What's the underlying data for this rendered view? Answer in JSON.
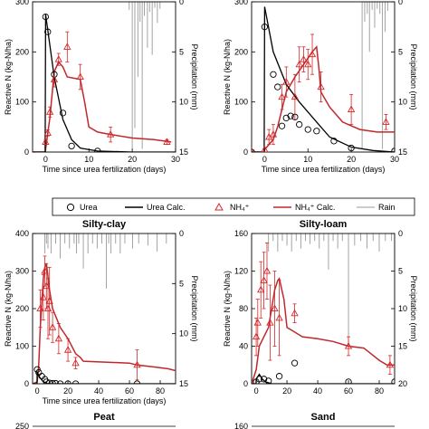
{
  "legend": {
    "urea": "Urea",
    "urea_calc": "Urea Calc.",
    "nh4": "NH₄⁺",
    "nh4_calc": "NH₄⁺ Calc.",
    "rain": "Rain"
  },
  "colors": {
    "urea": "#000000",
    "nh4": "#d62728",
    "nh4_calc": "#c0282d",
    "rain": "#999999"
  },
  "chart_data": [
    {
      "id": "p1",
      "type": "line",
      "title": "",
      "xlabel": "Time since urea fertilization (days)",
      "ylabel": "Reactive N (kg-N/ha)",
      "y2label": "Precipitation (mm)",
      "xlim": [
        -3,
        30
      ],
      "xticks": [
        0,
        10,
        20,
        30
      ],
      "ylim": [
        0,
        300
      ],
      "yticks": [
        0,
        100,
        200,
        300
      ],
      "y2lim": [
        15,
        0
      ],
      "y2ticks": [
        0,
        5,
        10,
        15
      ],
      "urea_obs": [
        [
          0,
          270
        ],
        [
          0.5,
          240
        ],
        [
          2,
          155
        ],
        [
          4,
          78
        ],
        [
          6,
          12
        ],
        [
          12,
          2
        ]
      ],
      "urea_calc": [
        [
          -3,
          0
        ],
        [
          -0.1,
          0
        ],
        [
          0,
          275
        ],
        [
          2,
          150
        ],
        [
          4,
          65
        ],
        [
          6,
          25
        ],
        [
          8,
          8
        ],
        [
          12,
          2
        ],
        [
          20,
          0
        ],
        [
          30,
          0
        ]
      ],
      "nh4_obs": [
        [
          0,
          20,
          5
        ],
        [
          0.5,
          38,
          6
        ],
        [
          1,
          80,
          10
        ],
        [
          2,
          145,
          15
        ],
        [
          3,
          185,
          12
        ],
        [
          5,
          210,
          30
        ],
        [
          8,
          150,
          25
        ],
        [
          15,
          35,
          15
        ],
        [
          28,
          20,
          5
        ]
      ],
      "nh4_calc": [
        [
          -3,
          0
        ],
        [
          -0.1,
          0
        ],
        [
          0,
          5
        ],
        [
          1,
          70
        ],
        [
          2,
          160
        ],
        [
          3,
          180
        ],
        [
          4,
          170
        ],
        [
          5,
          150
        ],
        [
          8,
          145
        ],
        [
          9,
          100
        ],
        [
          10,
          50
        ],
        [
          12,
          40
        ],
        [
          15,
          35
        ],
        [
          20,
          28
        ],
        [
          25,
          25
        ],
        [
          29,
          20
        ]
      ],
      "rain": [
        [
          19.3,
          0.8
        ],
        [
          20,
          14.7
        ],
        [
          20.6,
          12.6
        ],
        [
          21.3,
          7.5
        ],
        [
          21.8,
          2
        ],
        [
          22.3,
          14.7
        ],
        [
          22.8,
          1.4
        ],
        [
          23.5,
          4.6
        ],
        [
          24,
          1
        ],
        [
          24.6,
          5.3
        ],
        [
          25.2,
          0.6
        ],
        [
          25.8,
          2.1
        ],
        [
          26.4,
          0.7
        ]
      ]
    },
    {
      "id": "p2",
      "type": "line",
      "title": "",
      "xlabel": "Time since urea fertilization (days)",
      "ylabel": "Reactive N (kg-N/ha)",
      "y2label": "Precipitation (mm)",
      "xlim": [
        -3,
        30
      ],
      "xticks": [
        0,
        10,
        20,
        30
      ],
      "ylim": [
        0,
        300
      ],
      "yticks": [
        0,
        100,
        200,
        300
      ],
      "y2lim": [
        15,
        0
      ],
      "y2ticks": [
        0,
        5,
        10,
        15
      ],
      "urea_obs": [
        [
          -3,
          0
        ],
        [
          0,
          250
        ],
        [
          2,
          155
        ],
        [
          3,
          130
        ],
        [
          4,
          52
        ],
        [
          5,
          68
        ],
        [
          6,
          72
        ],
        [
          7,
          70
        ],
        [
          8,
          55
        ],
        [
          10,
          45
        ],
        [
          12,
          42
        ],
        [
          16,
          22
        ],
        [
          20,
          8
        ],
        [
          30,
          2
        ]
      ],
      "urea_calc": [
        [
          -3,
          0
        ],
        [
          -0.1,
          0
        ],
        [
          0,
          290
        ],
        [
          2,
          200
        ],
        [
          5,
          135
        ],
        [
          8,
          100
        ],
        [
          10,
          80
        ],
        [
          12,
          60
        ],
        [
          15,
          30
        ],
        [
          20,
          10
        ],
        [
          25,
          3
        ],
        [
          30,
          0
        ]
      ],
      "nh4_obs": [
        [
          -3,
          2,
          0
        ],
        [
          0,
          5,
          0
        ],
        [
          1,
          30,
          15
        ],
        [
          2,
          35,
          20
        ],
        [
          4,
          110,
          25
        ],
        [
          5,
          140,
          30
        ],
        [
          7,
          110,
          45
        ],
        [
          8,
          175,
          35
        ],
        [
          9,
          185,
          25
        ],
        [
          10,
          175,
          30
        ],
        [
          11,
          195,
          40
        ],
        [
          13,
          130,
          30
        ],
        [
          20,
          85,
          30
        ],
        [
          28,
          60,
          15
        ]
      ],
      "nh4_calc": [
        [
          -3,
          0
        ],
        [
          -0.1,
          0
        ],
        [
          0,
          5
        ],
        [
          2,
          25
        ],
        [
          3,
          50
        ],
        [
          5,
          120
        ],
        [
          7,
          150
        ],
        [
          9,
          175
        ],
        [
          11,
          200
        ],
        [
          12,
          210
        ],
        [
          12.5,
          170
        ],
        [
          13,
          120
        ],
        [
          15,
          90
        ],
        [
          18,
          60
        ],
        [
          22,
          45
        ],
        [
          26,
          40
        ],
        [
          30,
          40
        ]
      ],
      "rain": [
        [
          22.5,
          14.7
        ],
        [
          23.1,
          2
        ],
        [
          23.7,
          1.2
        ],
        [
          24.2,
          5
        ],
        [
          24.8,
          0.8
        ],
        [
          25.4,
          2.6
        ],
        [
          26,
          0.7
        ],
        [
          26.6,
          1.2
        ],
        [
          27.2,
          14.7
        ],
        [
          27.8,
          3
        ],
        [
          28.4,
          0.9
        ]
      ]
    },
    {
      "id": "p3",
      "type": "line",
      "title": "Silty-clay",
      "xlabel": "Time since urea fertilization (days)",
      "ylabel": "Reactive N (kg-N/ha)",
      "y2label": "Precipitation (mm)",
      "xlim": [
        -3,
        90
      ],
      "xticks": [
        0,
        20,
        40,
        60,
        80
      ],
      "ylim": [
        0,
        400
      ],
      "yticks": [
        0,
        100,
        200,
        300,
        400
      ],
      "y2lim": [
        15,
        0
      ],
      "y2ticks": [
        0,
        5,
        10,
        15
      ],
      "urea_obs": [
        [
          0,
          38
        ],
        [
          1,
          30
        ],
        [
          3,
          20
        ],
        [
          5,
          12
        ],
        [
          6,
          5
        ],
        [
          8,
          2
        ],
        [
          10,
          1
        ],
        [
          12,
          1
        ],
        [
          15,
          0
        ],
        [
          20,
          0
        ],
        [
          25,
          0
        ],
        [
          65,
          0
        ]
      ],
      "urea_calc": [
        [
          -3,
          0
        ],
        [
          -0.1,
          0
        ],
        [
          0,
          30
        ],
        [
          2,
          15
        ],
        [
          4,
          5
        ],
        [
          6,
          1
        ],
        [
          10,
          0
        ],
        [
          90,
          0
        ]
      ],
      "nh4_obs": [
        [
          2,
          200,
          50
        ],
        [
          4,
          230,
          60
        ],
        [
          5,
          300,
          40
        ],
        [
          6,
          260,
          60
        ],
        [
          7,
          200,
          80
        ],
        [
          8,
          220,
          90
        ],
        [
          10,
          150,
          40
        ],
        [
          14,
          120,
          40
        ],
        [
          20,
          90,
          30
        ],
        [
          25,
          55,
          15
        ],
        [
          65,
          50,
          40
        ]
      ],
      "nh4_calc": [
        [
          -3,
          0
        ],
        [
          0,
          5
        ],
        [
          1,
          50
        ],
        [
          2,
          150
        ],
        [
          4,
          280
        ],
        [
          5,
          310
        ],
        [
          6,
          320
        ],
        [
          8,
          250
        ],
        [
          10,
          200
        ],
        [
          12,
          180
        ],
        [
          15,
          150
        ],
        [
          20,
          120
        ],
        [
          25,
          80
        ],
        [
          28,
          70
        ],
        [
          30,
          60
        ],
        [
          60,
          55
        ],
        [
          65,
          50
        ],
        [
          75,
          45
        ],
        [
          85,
          40
        ],
        [
          90,
          35
        ]
      ],
      "rain": [
        [
          5,
          2
        ],
        [
          6,
          1
        ],
        [
          7,
          1.5
        ],
        [
          9,
          2
        ],
        [
          12,
          1
        ],
        [
          15,
          2.5
        ],
        [
          18,
          1
        ],
        [
          21,
          1.5
        ],
        [
          24,
          1
        ],
        [
          25.5,
          2
        ],
        [
          27,
          1
        ],
        [
          30,
          3.5
        ],
        [
          33,
          2
        ],
        [
          36,
          1
        ],
        [
          39,
          1.5
        ],
        [
          42,
          1
        ],
        [
          45,
          5.5
        ],
        [
          46.5,
          1
        ],
        [
          48,
          2
        ],
        [
          51,
          1
        ],
        [
          54,
          2
        ],
        [
          57,
          1
        ],
        [
          62,
          1.5
        ],
        [
          66,
          1
        ],
        [
          72,
          1.2
        ],
        [
          78,
          1.8
        ],
        [
          84,
          1
        ]
      ]
    },
    {
      "id": "p4",
      "type": "line",
      "title": "Silty-loam",
      "xlabel": "",
      "ylabel": "Reactive N (kg-N/ha)",
      "y2label": "Precipitation (mm)",
      "xlim": [
        -3,
        90
      ],
      "xticks": [
        0,
        20,
        40,
        60,
        80
      ],
      "ylim": [
        0,
        160
      ],
      "yticks": [
        0,
        40,
        80,
        120,
        160
      ],
      "y2lim": [
        20,
        0
      ],
      "y2ticks": [
        0,
        5,
        10,
        15,
        20
      ],
      "urea_obs": [
        [
          0,
          2
        ],
        [
          2,
          5
        ],
        [
          5,
          5
        ],
        [
          8,
          3
        ],
        [
          15,
          8
        ],
        [
          25,
          22
        ],
        [
          60,
          2
        ],
        [
          90,
          2
        ]
      ],
      "urea_calc": [
        [
          -3,
          0
        ],
        [
          -0.1,
          0
        ],
        [
          0,
          5
        ],
        [
          2,
          10
        ],
        [
          4,
          5
        ],
        [
          6,
          2
        ],
        [
          10,
          0
        ],
        [
          90,
          0
        ]
      ],
      "nh4_obs": [
        [
          0,
          50,
          20
        ],
        [
          1,
          65,
          25
        ],
        [
          3,
          100,
          30
        ],
        [
          5,
          110,
          30
        ],
        [
          7,
          120,
          30
        ],
        [
          9,
          65,
          40
        ],
        [
          12,
          80,
          40
        ],
        [
          15,
          70,
          40
        ],
        [
          25,
          75,
          10
        ],
        [
          60,
          40,
          10
        ],
        [
          87,
          20,
          10
        ]
      ],
      "nh4_calc": [
        [
          -3,
          0
        ],
        [
          0,
          15
        ],
        [
          2,
          40
        ],
        [
          5,
          50
        ],
        [
          8,
          60
        ],
        [
          10,
          80
        ],
        [
          12,
          100
        ],
        [
          14,
          110
        ],
        [
          15,
          112
        ],
        [
          18,
          90
        ],
        [
          20,
          60
        ],
        [
          25,
          55
        ],
        [
          30,
          50
        ],
        [
          40,
          48
        ],
        [
          50,
          45
        ],
        [
          60,
          40
        ],
        [
          70,
          38
        ],
        [
          80,
          25
        ],
        [
          85,
          20
        ],
        [
          90,
          20
        ]
      ],
      "rain": [
        [
          8,
          2.4
        ],
        [
          11,
          1
        ],
        [
          14,
          2.4
        ],
        [
          17,
          1
        ],
        [
          20,
          1.6
        ],
        [
          23,
          2.4
        ],
        [
          26,
          1
        ],
        [
          29,
          2
        ],
        [
          32,
          1
        ],
        [
          35,
          1.4
        ],
        [
          38,
          1
        ],
        [
          41,
          2
        ],
        [
          44,
          1
        ],
        [
          47,
          4.8
        ],
        [
          50,
          1
        ],
        [
          53,
          2
        ],
        [
          56,
          1
        ],
        [
          60,
          15
        ],
        [
          64,
          1.6
        ],
        [
          68,
          1
        ],
        [
          72,
          2
        ],
        [
          76,
          1
        ],
        [
          80,
          2.4
        ],
        [
          84,
          1
        ],
        [
          88,
          1
        ]
      ]
    },
    {
      "id": "p5",
      "type": "line",
      "title": "Peat",
      "ylim": [
        0,
        250
      ],
      "yticks": [
        250
      ]
    },
    {
      "id": "p6",
      "type": "line",
      "title": "Sand",
      "ylim": [
        0,
        160
      ],
      "yticks": [
        160
      ]
    }
  ]
}
